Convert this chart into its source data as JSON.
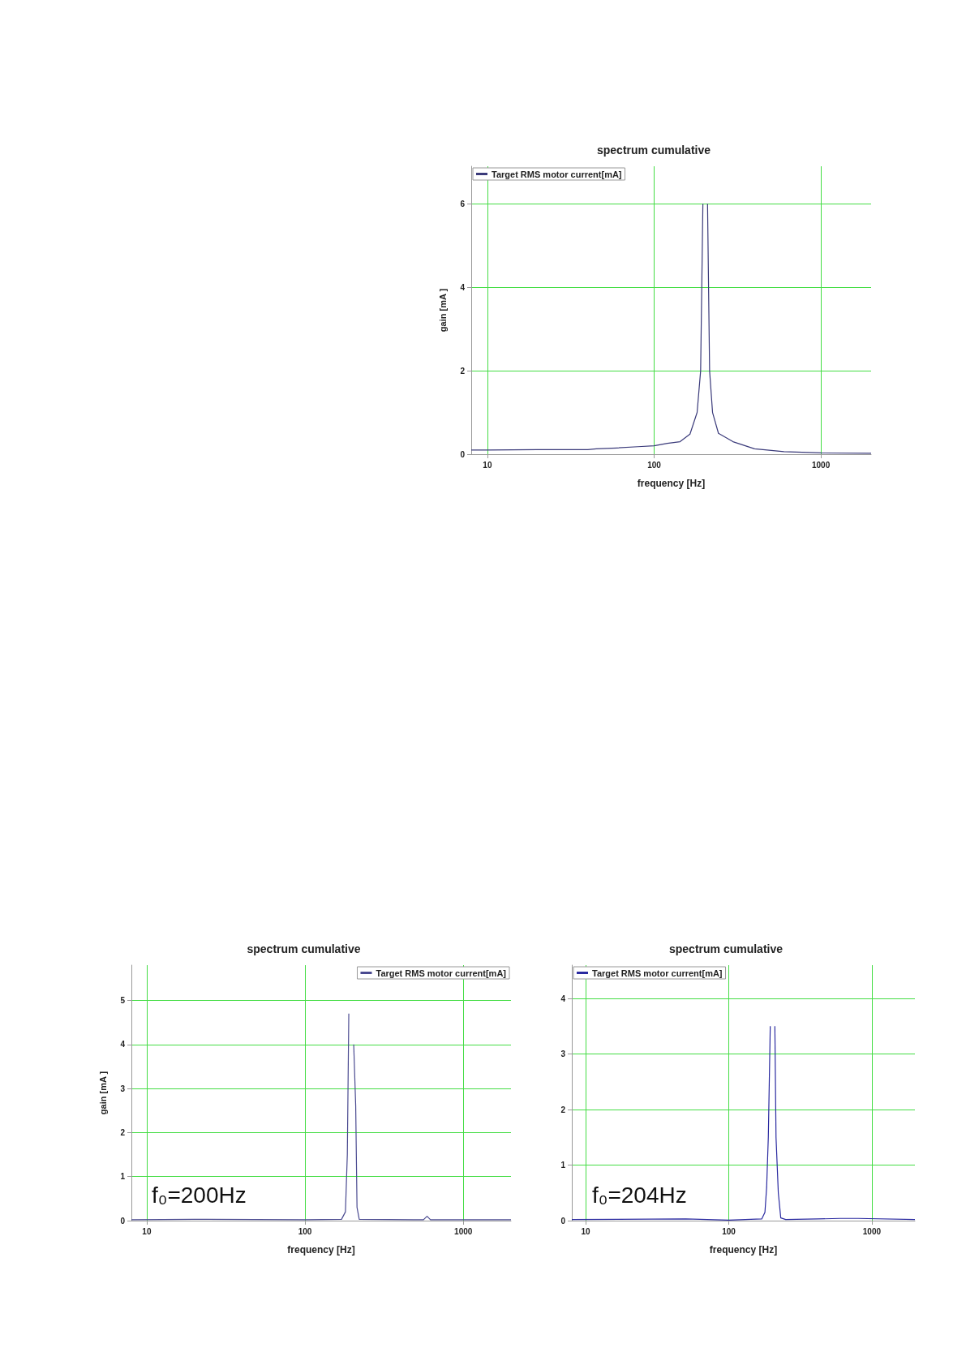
{
  "chart_data": [
    {
      "type": "line",
      "title": "spectrum cumulative",
      "xlabel": "frequency [Hz]",
      "ylabel": "gain [mA ]",
      "log": "x",
      "grid": true,
      "legend": "top left",
      "xlim": [
        8,
        2000
      ],
      "xticks": [
        10,
        100,
        1000
      ],
      "ylim": [
        0,
        6.9
      ],
      "yticks": [
        0,
        2,
        4,
        6
      ],
      "x": [
        8,
        10,
        20,
        40,
        45,
        60,
        80,
        100,
        120,
        143,
        164,
        181,
        190,
        196,
        199,
        208,
        209,
        215,
        224,
        243,
        297,
        400,
        600,
        1000,
        2000
      ],
      "series": [
        {
          "name": "Target RMS motor current[mA]",
          "color": "#3a3a7a",
          "values": [
            0.1,
            0.1,
            0.11,
            0.11,
            0.13,
            0.15,
            0.18,
            0.2,
            0.26,
            0.3,
            0.48,
            1.0,
            2.0,
            6.0,
            null,
            null,
            6.0,
            2.0,
            1.0,
            0.5,
            0.3,
            0.13,
            0.06,
            0.03,
            0.02
          ]
        }
      ]
    },
    {
      "type": "line",
      "title": "spectrum cumulative",
      "xlabel": "frequency [Hz]",
      "ylabel": "gain [mA ]",
      "log": "x",
      "grid": true,
      "legend": "top right",
      "xlim": [
        8,
        2000
      ],
      "xticks": [
        10,
        100,
        1000
      ],
      "ylim": [
        0,
        5.8
      ],
      "yticks": [
        0,
        1,
        2,
        3,
        4,
        5
      ],
      "annotations": [
        "f₀=200Hz"
      ],
      "x": [
        8,
        20,
        100,
        170,
        180,
        185,
        189,
        195,
        200,
        203,
        209,
        213,
        220,
        560,
        590,
        620,
        2000
      ],
      "series": [
        {
          "name": "Target RMS motor current[mA]",
          "color": "#4a4a90",
          "values": [
            0.02,
            0.03,
            0.02,
            0.03,
            0.2,
            1.5,
            4.7,
            null,
            null,
            4.0,
            2.6,
            0.3,
            0.03,
            0.02,
            0.1,
            0.02,
            0.02
          ]
        }
      ]
    },
    {
      "type": "line",
      "title": "spectrum cumulative",
      "xlabel": "frequency [Hz]",
      "log": "x",
      "grid": true,
      "legend": "top left",
      "xlim": [
        8,
        2000
      ],
      "xticks": [
        10,
        100,
        1000
      ],
      "ylim": [
        0,
        4.6
      ],
      "yticks": [
        0,
        1,
        2,
        3,
        4
      ],
      "annotations": [
        "f₀=204Hz"
      ],
      "x": [
        8,
        50,
        100,
        170,
        179,
        184,
        189,
        195,
        200,
        206,
        210,
        214,
        222,
        231,
        250,
        420,
        600,
        800,
        2000
      ],
      "series": [
        {
          "name": "Target RMS motor current[mA]",
          "color": "#2a2aa0",
          "values": [
            0.02,
            0.03,
            0.01,
            0.03,
            0.15,
            0.6,
            1.5,
            3.5,
            null,
            null,
            3.5,
            1.5,
            0.5,
            0.05,
            0.02,
            0.03,
            0.04,
            0.04,
            0.02
          ]
        }
      ]
    }
  ]
}
